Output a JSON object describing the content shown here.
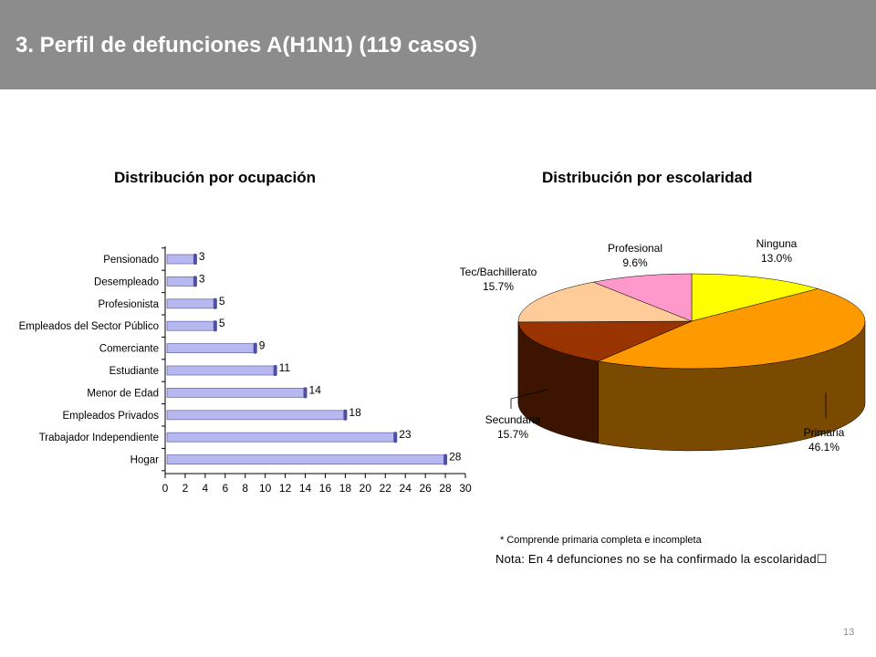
{
  "header": {
    "title": "3. Perfil de defunciones A(H1N1) (119 casos)"
  },
  "chart_data": [
    {
      "type": "bar",
      "orientation": "horizontal",
      "title": "Distribución por ocupación",
      "categories": [
        "Pensionado",
        "Desempleado",
        "Profesionista",
        "Empleados del Sector Público",
        "Comerciante",
        "Estudiante",
        "Menor de Edad",
        "Empleados Privados",
        "Trabajador Independiente",
        "Hogar"
      ],
      "values": [
        3,
        3,
        5,
        5,
        9,
        11,
        14,
        18,
        23,
        28
      ],
      "value_labels": [
        "3",
        "3",
        "5",
        "5",
        "9",
        "11",
        "14",
        "18",
        "23",
        "28"
      ],
      "xlim": [
        0,
        30
      ],
      "xticks": [
        "0",
        "2",
        "4",
        "6",
        "8",
        "10",
        "12",
        "14",
        "16",
        "18",
        "20",
        "22",
        "24",
        "26",
        "28",
        "30"
      ],
      "grid": false,
      "bar_color": "#b8b8f0"
    },
    {
      "type": "pie",
      "style": "3d",
      "title": "Distribución por escolaridad",
      "slices": [
        {
          "label": "Ninguna",
          "pct_label": "13.0%",
          "value": 13.0,
          "color": "#ffff00",
          "side_color": "#8a8a00"
        },
        {
          "label": "Primaria",
          "pct_label": "46.1%",
          "value": 46.1,
          "color": "#ff9900",
          "side_color": "#7a4a00"
        },
        {
          "label": "Secundaria",
          "pct_label": "15.7%",
          "value": 15.7,
          "color": "#993300",
          "side_color": "#3d1400"
        },
        {
          "label": "Tec/Bachillerato",
          "pct_label": "15.7%",
          "value": 15.7,
          "color": "#ffcc99",
          "side_color": "#8a6a48"
        },
        {
          "label": "Profesional",
          "pct_label": "9.6%",
          "value": 9.6,
          "color": "#ff99cc",
          "side_color": "#8a4a6a"
        }
      ]
    }
  ],
  "notes": {
    "footnote": "* Comprende primaria completa e incompleta",
    "note": "Nota: En 4 defunciones no se ha confirmado la escolaridad"
  },
  "page_number": "13"
}
